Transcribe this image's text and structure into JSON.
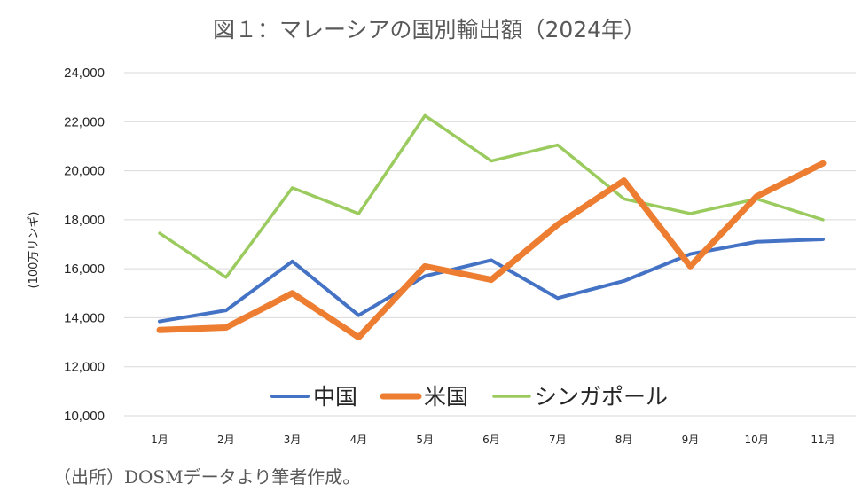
{
  "source_note": "（出所）DOSMデータより筆者作成。",
  "chart_data": {
    "type": "line",
    "title": "図１：マレーシアの国別輸出額（2024年）",
    "ylabel": "(100万リンギ)",
    "xlabel": "",
    "ylim": [
      10000,
      24000
    ],
    "yticks": [
      10000,
      12000,
      14000,
      16000,
      18000,
      20000,
      22000,
      24000
    ],
    "ytick_labels": [
      "10,000",
      "12,000",
      "14,000",
      "16,000",
      "18,000",
      "20,000",
      "22,000",
      "24,000"
    ],
    "categories": [
      "1月",
      "2月",
      "3月",
      "4月",
      "5月",
      "6月",
      "7月",
      "8月",
      "9月",
      "10月",
      "11月"
    ],
    "grid": true,
    "legend_position": "bottom-inside",
    "series": [
      {
        "name": "中国",
        "color": "#4472C4",
        "values": [
          13850,
          14300,
          16300,
          14100,
          15700,
          16350,
          14800,
          15500,
          16600,
          17100,
          17200
        ]
      },
      {
        "name": "米国",
        "color": "#ED7D31",
        "values": [
          13500,
          13600,
          15000,
          13200,
          16100,
          15550,
          17800,
          19600,
          16100,
          18950,
          20300
        ]
      },
      {
        "name": "シンガポール",
        "color": "#9BCB5E",
        "values": [
          17450,
          15650,
          19300,
          18250,
          22250,
          20400,
          21050,
          18850,
          18250,
          18850,
          18000
        ]
      }
    ]
  }
}
